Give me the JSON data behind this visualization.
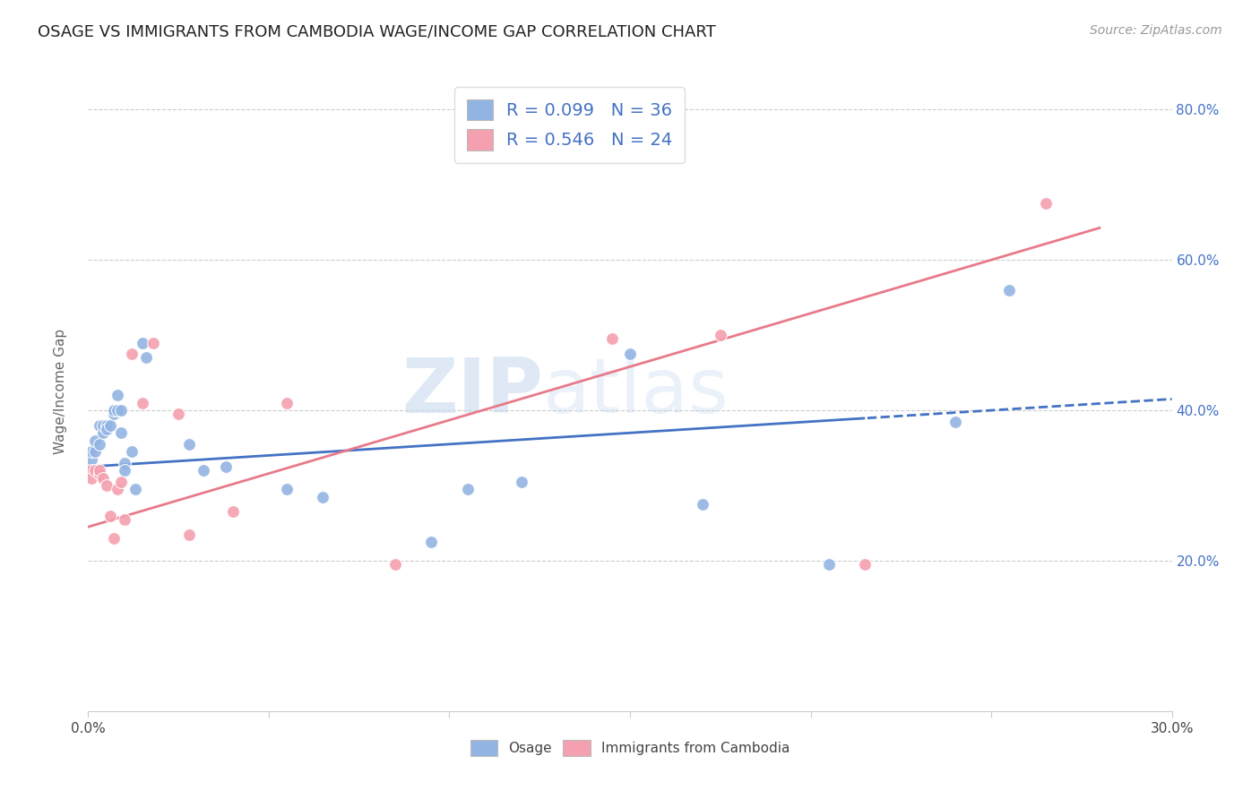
{
  "title": "OSAGE VS IMMIGRANTS FROM CAMBODIA WAGE/INCOME GAP CORRELATION CHART",
  "source": "Source: ZipAtlas.com",
  "ylabel": "Wage/Income Gap",
  "xlim": [
    0.0,
    0.3
  ],
  "ylim": [
    0.0,
    0.85
  ],
  "xtick_labels": [
    "0.0%",
    "",
    "",
    "",
    "",
    "",
    "30.0%"
  ],
  "ytick_labels": [
    "20.0%",
    "40.0%",
    "60.0%",
    "80.0%"
  ],
  "osage_R": 0.099,
  "osage_N": 36,
  "cambodia_R": 0.546,
  "cambodia_N": 24,
  "osage_color": "#92b4e3",
  "cambodia_color": "#f4a0b0",
  "osage_line_color": "#4472c4",
  "cambodia_line_color": "#e87a8a",
  "legend_text_color": "#4472c4",
  "watermark_zip": "ZIP",
  "watermark_atlas": "atlas",
  "osage_x": [
    0.001,
    0.001,
    0.002,
    0.002,
    0.003,
    0.003,
    0.004,
    0.004,
    0.005,
    0.005,
    0.006,
    0.007,
    0.007,
    0.008,
    0.008,
    0.009,
    0.009,
    0.01,
    0.01,
    0.012,
    0.013,
    0.015,
    0.016,
    0.028,
    0.032,
    0.038,
    0.055,
    0.065,
    0.095,
    0.105,
    0.12,
    0.15,
    0.17,
    0.205,
    0.24,
    0.255
  ],
  "osage_y": [
    0.335,
    0.345,
    0.345,
    0.36,
    0.355,
    0.38,
    0.37,
    0.38,
    0.38,
    0.375,
    0.38,
    0.395,
    0.4,
    0.4,
    0.42,
    0.4,
    0.37,
    0.33,
    0.32,
    0.345,
    0.295,
    0.49,
    0.47,
    0.355,
    0.32,
    0.325,
    0.295,
    0.285,
    0.225,
    0.295,
    0.305,
    0.475,
    0.275,
    0.195,
    0.385,
    0.56
  ],
  "cambodia_x": [
    0.001,
    0.001,
    0.002,
    0.003,
    0.003,
    0.004,
    0.005,
    0.006,
    0.007,
    0.008,
    0.009,
    0.01,
    0.012,
    0.015,
    0.018,
    0.025,
    0.028,
    0.04,
    0.055,
    0.085,
    0.145,
    0.175,
    0.215,
    0.265
  ],
  "cambodia_y": [
    0.32,
    0.31,
    0.32,
    0.315,
    0.32,
    0.31,
    0.3,
    0.26,
    0.23,
    0.295,
    0.305,
    0.255,
    0.475,
    0.41,
    0.49,
    0.395,
    0.235,
    0.265,
    0.41,
    0.195,
    0.495,
    0.5,
    0.195,
    0.675
  ],
  "osage_line_intercept": 0.325,
  "osage_line_slope": 0.3,
  "cambodia_line_intercept": 0.245,
  "cambodia_line_slope": 1.42
}
